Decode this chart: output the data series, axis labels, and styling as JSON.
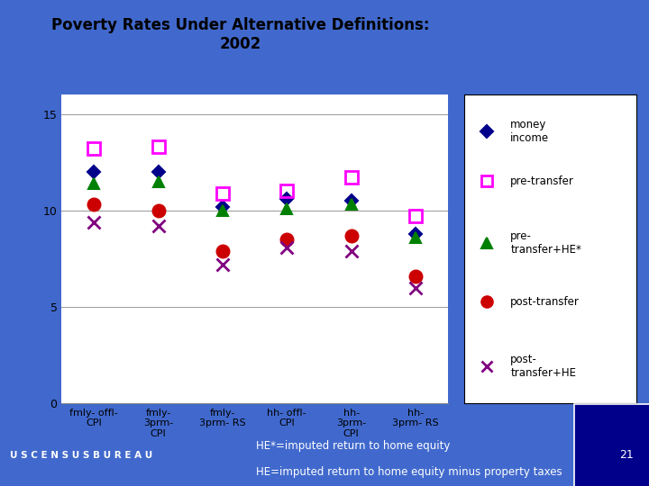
{
  "title_line1": "Poverty Rates Under Alternative Definitions:",
  "title_line2": "2002",
  "categories": [
    "fmly- offl-\nCPI",
    "fmly-\n3prm-\nCPI",
    "fmly-\n3prm- RS",
    "hh- offl-\nCPI",
    "hh-\n3prm-\nCPI",
    "hh-\n3prm- RS"
  ],
  "ylim": [
    0.0,
    16.0
  ],
  "yticks": [
    0.0,
    5.0,
    10.0,
    15.0
  ],
  "series": {
    "money_income": {
      "label": "money\nincome",
      "color": "#00008B",
      "marker": "D",
      "mfc": "#00008B",
      "ms": 7,
      "values": [
        12.0,
        12.0,
        10.2,
        10.6,
        10.5,
        8.8
      ]
    },
    "pre_transfer": {
      "label": "pre-transfer",
      "color": "#FF00FF",
      "marker": "s",
      "mfc": "none",
      "ms": 10,
      "values": [
        13.2,
        13.3,
        10.9,
        11.0,
        11.7,
        9.7
      ]
    },
    "pre_transfer_HE": {
      "label": "pre-\ntransfer+HE*",
      "color": "#008000",
      "marker": "^",
      "mfc": "#008000",
      "ms": 9,
      "values": [
        11.4,
        11.5,
        10.0,
        10.1,
        10.3,
        8.6
      ]
    },
    "post_transfer": {
      "label": "post-transfer",
      "color": "#CC0000",
      "marker": "o",
      "mfc": "#CC0000",
      "ms": 10,
      "values": [
        10.3,
        10.0,
        7.9,
        8.5,
        8.7,
        6.6
      ]
    },
    "post_transfer_HE": {
      "label": "post-\ntransfer+HE",
      "color": "#800080",
      "marker": "x",
      "mfc": "#800080",
      "ms": 10,
      "values": [
        9.4,
        9.2,
        7.2,
        8.1,
        7.9,
        6.0
      ]
    }
  },
  "bg_color": "#4169CD",
  "plot_bg_color": "#FFFFFF",
  "legend_bg": "#FFFFFF",
  "footer_bg": "#00008B",
  "footer_text1": "HE*=imputed return to home equity",
  "footer_text2": "HE=imputed return to home equity minus property taxes",
  "page_number": "21"
}
